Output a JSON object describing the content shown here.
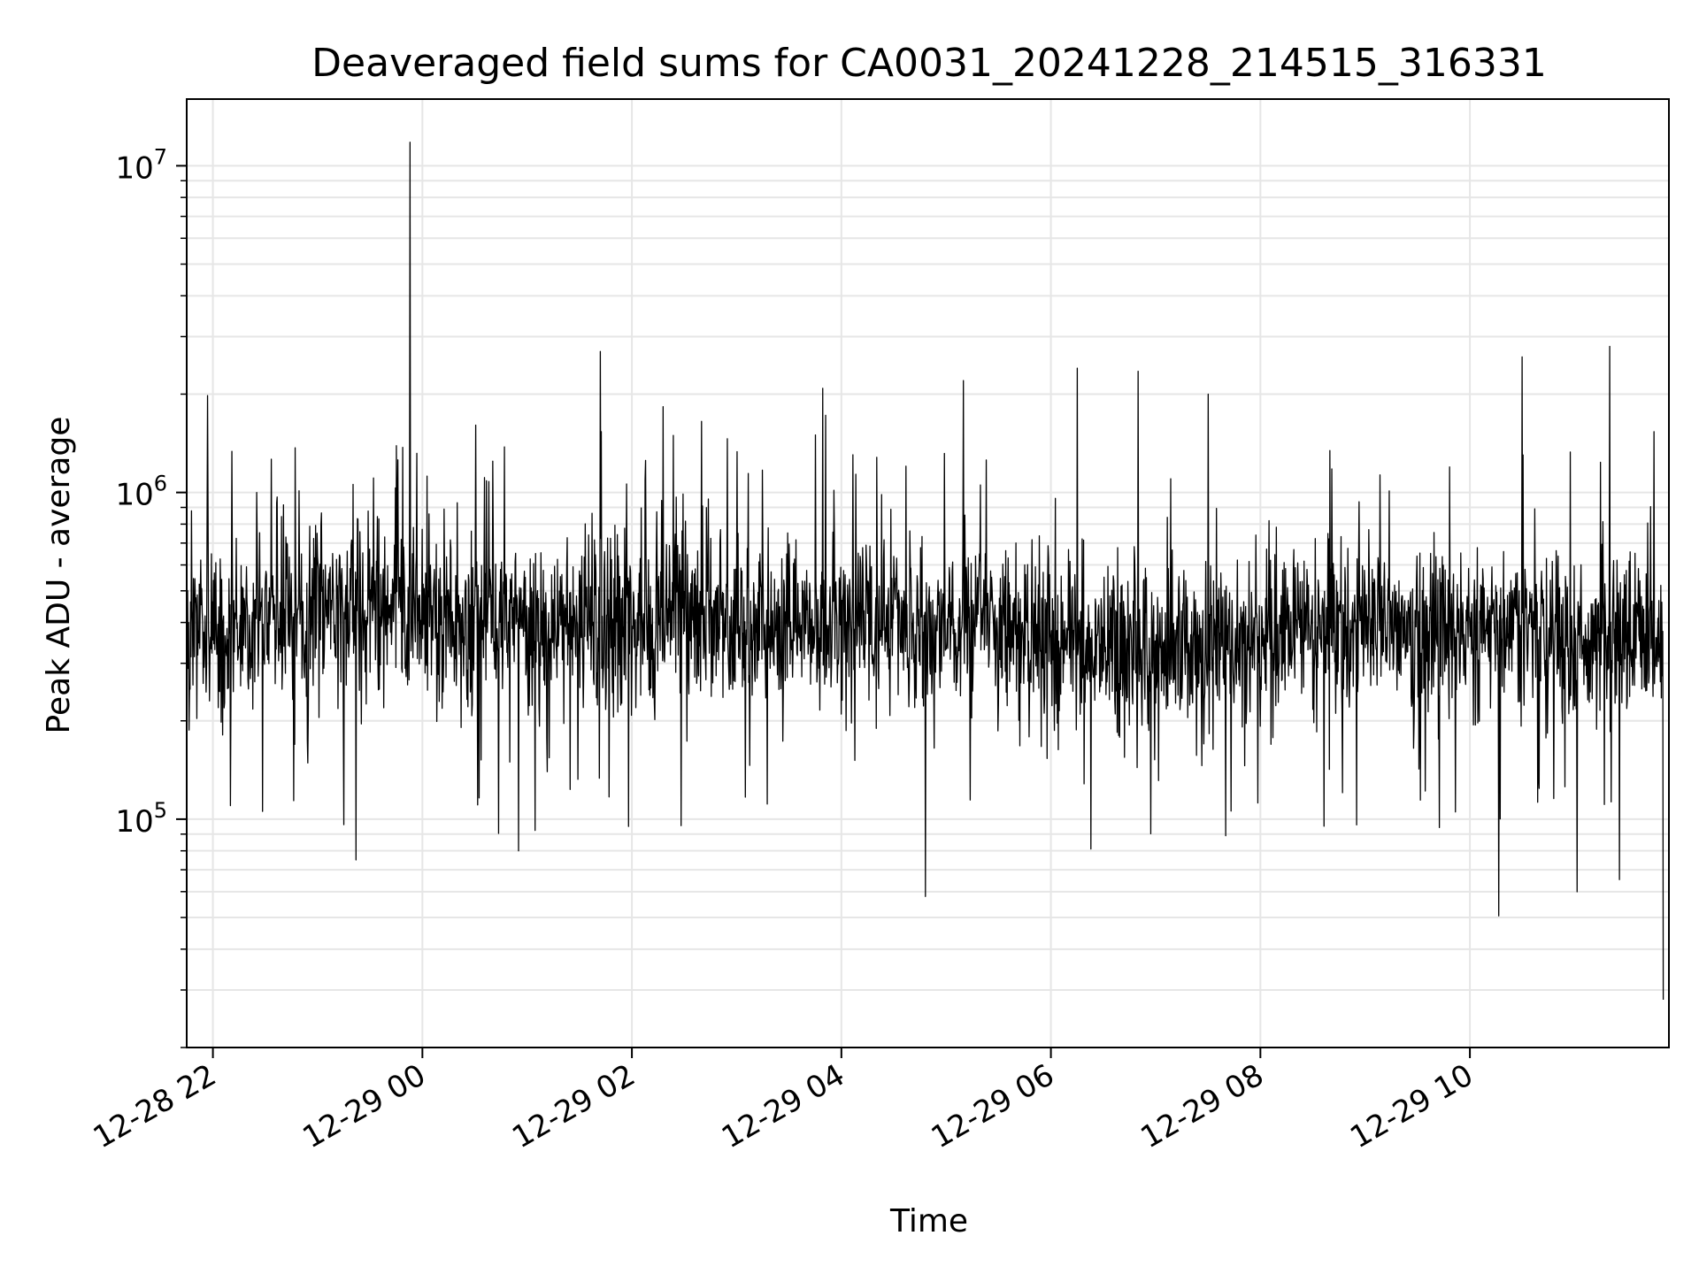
{
  "chart_data": {
    "type": "line",
    "title": "Deaveraged field sums for CA0031_20241228_214515_316331",
    "xlabel": "Time",
    "ylabel": "Peak ADU - average",
    "yscale": "log",
    "xlim": [
      "2024-12-28 21:45",
      "2024-12-29 11:54"
    ],
    "ylim": [
      20000,
      16000000
    ],
    "grid": true,
    "line_color": "#000000",
    "grid_color": "#e6e6e6",
    "x_ticks": [
      {
        "value": "2024-12-28 22:00",
        "label": "12-28 22"
      },
      {
        "value": "2024-12-29 00:00",
        "label": "12-29 00"
      },
      {
        "value": "2024-12-29 02:00",
        "label": "12-29 02"
      },
      {
        "value": "2024-12-29 04:00",
        "label": "12-29 04"
      },
      {
        "value": "2024-12-29 06:00",
        "label": "12-29 06"
      },
      {
        "value": "2024-12-29 08:00",
        "label": "12-29 08"
      },
      {
        "value": "2024-12-29 10:00",
        "label": "12-29 10"
      }
    ],
    "y_ticks": [
      {
        "value": 100000,
        "base": "10",
        "exp": "5"
      },
      {
        "value": 1000000,
        "base": "10",
        "exp": "6"
      },
      {
        "value": 10000000,
        "base": "10",
        "exp": "7"
      }
    ],
    "series": [
      {
        "x": [
          "2024-12-28 21:46",
          "2024-12-28 21:57",
          "2024-12-28 22:10",
          "2024-12-28 22:25",
          "2024-12-28 22:47",
          "2024-12-28 23:07",
          "2024-12-28 23:22",
          "2024-12-28 23:35",
          "2024-12-28 23:53",
          "2024-12-29 00:20",
          "2024-12-29 00:55",
          "2024-12-29 01:15",
          "2024-12-29 01:42",
          "2024-12-29 01:58",
          "2024-12-29 02:18",
          "2024-12-29 02:40",
          "2024-12-29 03:15",
          "2024-12-29 03:45",
          "2024-12-29 04:40",
          "2024-12-29 04:48",
          "2024-12-29 05:10",
          "2024-12-29 05:40",
          "2024-12-29 06:15",
          "2024-12-29 06:50",
          "2024-12-29 07:30",
          "2024-12-29 08:05",
          "2024-12-29 08:55",
          "2024-12-29 09:30",
          "2024-12-29 10:30",
          "2024-12-29 11:20",
          "2024-12-29 11:52"
        ],
        "y": [
          400000,
          1980000,
          110000,
          1000000,
          1370000,
          560000,
          75000,
          830000,
          11800000,
          930000,
          80000,
          470000,
          2700000,
          95000,
          1830000,
          1650000,
          640000,
          1500000,
          460000,
          58000,
          2200000,
          700000,
          2400000,
          2350000,
          2000000,
          820000,
          96000,
          430000,
          2600000,
          2800000,
          28000
        ]
      }
    ]
  }
}
